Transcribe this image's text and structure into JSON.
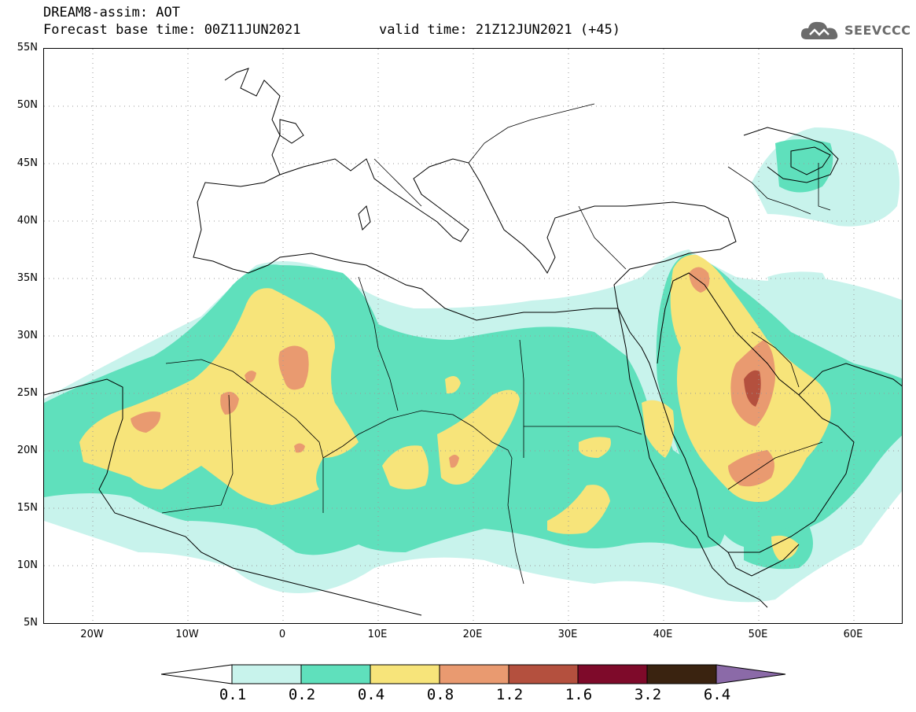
{
  "header": {
    "title": "DREAM8-assim: AOT",
    "base_time": "Forecast base time: 00Z11JUN2021",
    "valid_time": "valid time: 21Z12JUN2021 (+45)",
    "logo_text": "SEEVCCC"
  },
  "axes": {
    "lat_labels": [
      "55N",
      "50N",
      "45N",
      "40N",
      "35N",
      "30N",
      "25N",
      "20N",
      "15N",
      "10N",
      "5N"
    ],
    "lon_labels": [
      "20W",
      "10W",
      "0",
      "10E",
      "20E",
      "30E",
      "40E",
      "50E",
      "60E"
    ]
  },
  "colorbar": {
    "labels": [
      "0.1",
      "0.2",
      "0.4",
      "0.8",
      "1.2",
      "1.6",
      "3.2",
      "6.4"
    ],
    "colors": [
      "#c8f3ec",
      "#5fe0bc",
      "#f7e47a",
      "#e99a70",
      "#b4503e",
      "#7e0a2a",
      "#3a2310",
      "#8b6aa8"
    ]
  },
  "colors": {
    "c01": "#c8f3ec",
    "c02": "#5fe0bc",
    "c04": "#f7e47a",
    "c08": "#e99a70",
    "c12": "#b4503e"
  }
}
